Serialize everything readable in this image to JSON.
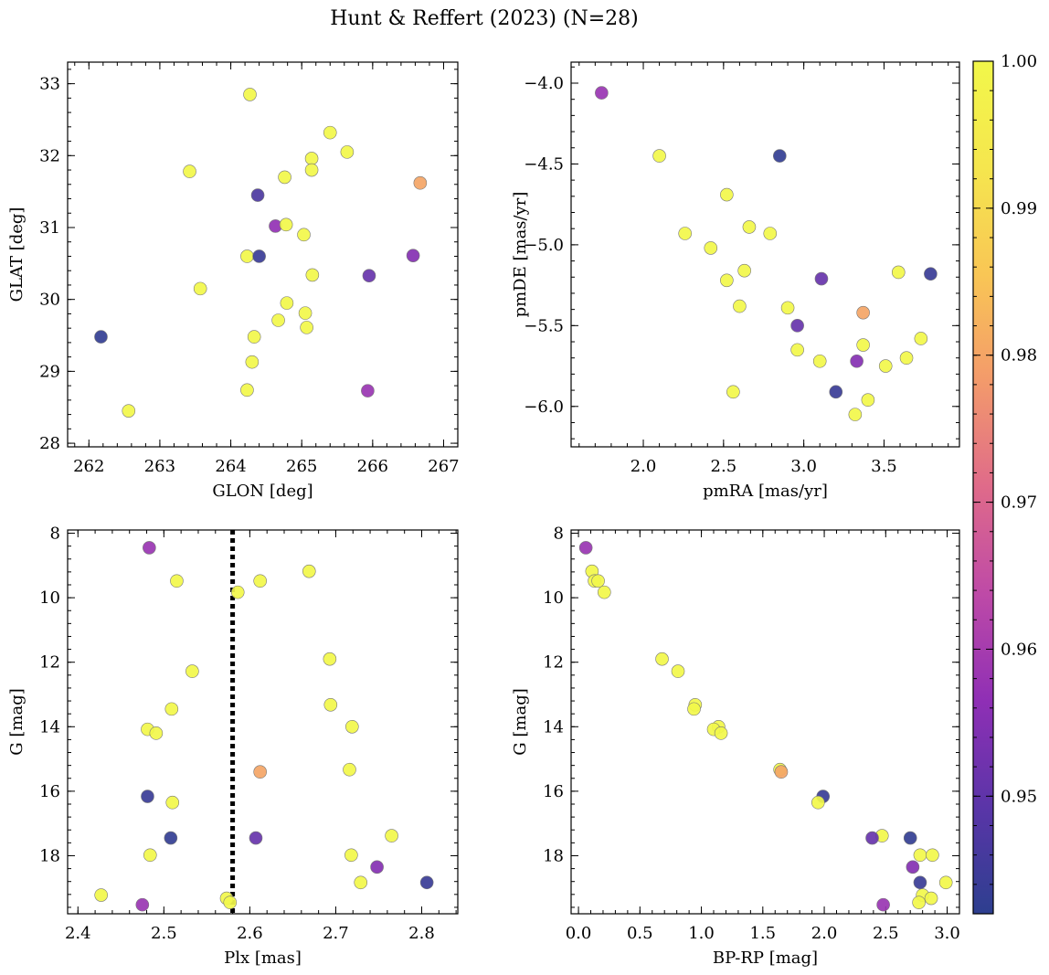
{
  "figure_title": "Hunt & Reffert (2023) (N=28)",
  "colorbar": {
    "range": [
      0.942,
      1.0
    ],
    "ticks": [
      "0.95",
      "0.96",
      "0.97",
      "0.98",
      "0.99",
      "1.00"
    ],
    "tick_values": [
      0.95,
      0.96,
      0.97,
      0.98,
      0.99,
      1.0
    ],
    "colormap": [
      "#2d3f8f",
      "#5a35a8",
      "#8f2fb5",
      "#be4aa7",
      "#df6a8a",
      "#f39a6b",
      "#f9c655",
      "#f5e64e",
      "#f2f74a"
    ]
  },
  "chart_data": [
    {
      "type": "scatter",
      "panel": "top-left",
      "xlabel": "GLON [deg]",
      "ylabel": "GLAT [deg]",
      "xlim": [
        261.7,
        267.2
      ],
      "ylim": [
        27.95,
        33.3
      ],
      "y_inverted": false,
      "xticks": [
        262,
        263,
        264,
        265,
        266,
        267
      ],
      "yticks": [
        28,
        29,
        30,
        31,
        32,
        33
      ],
      "points": [
        {
          "x": 264.27,
          "y": 32.85,
          "c": 1.0
        },
        {
          "x": 265.4,
          "y": 32.32,
          "c": 1.0
        },
        {
          "x": 265.64,
          "y": 32.05,
          "c": 1.0
        },
        {
          "x": 265.14,
          "y": 31.96,
          "c": 1.0
        },
        {
          "x": 263.42,
          "y": 31.78,
          "c": 1.0
        },
        {
          "x": 265.14,
          "y": 31.8,
          "c": 1.0
        },
        {
          "x": 264.76,
          "y": 31.7,
          "c": 1.0
        },
        {
          "x": 266.67,
          "y": 31.62,
          "c": 0.98
        },
        {
          "x": 264.38,
          "y": 31.45,
          "c": 0.947
        },
        {
          "x": 264.63,
          "y": 31.02,
          "c": 0.957
        },
        {
          "x": 264.78,
          "y": 31.04,
          "c": 1.0
        },
        {
          "x": 265.03,
          "y": 30.9,
          "c": 1.0
        },
        {
          "x": 264.23,
          "y": 30.6,
          "c": 1.0
        },
        {
          "x": 264.4,
          "y": 30.6,
          "c": 0.944
        },
        {
          "x": 266.57,
          "y": 30.61,
          "c": 0.955
        },
        {
          "x": 265.15,
          "y": 30.34,
          "c": 1.0
        },
        {
          "x": 265.95,
          "y": 30.33,
          "c": 0.951
        },
        {
          "x": 263.57,
          "y": 30.15,
          "c": 1.0
        },
        {
          "x": 264.79,
          "y": 29.95,
          "c": 1.0
        },
        {
          "x": 265.05,
          "y": 29.81,
          "c": 1.0
        },
        {
          "x": 264.67,
          "y": 29.71,
          "c": 1.0
        },
        {
          "x": 265.07,
          "y": 29.61,
          "c": 1.0
        },
        {
          "x": 262.17,
          "y": 29.48,
          "c": 0.943
        },
        {
          "x": 264.33,
          "y": 29.48,
          "c": 1.0
        },
        {
          "x": 264.3,
          "y": 29.13,
          "c": 1.0
        },
        {
          "x": 264.23,
          "y": 28.74,
          "c": 1.0
        },
        {
          "x": 265.93,
          "y": 28.73,
          "c": 0.958
        },
        {
          "x": 262.56,
          "y": 28.45,
          "c": 1.0
        }
      ]
    },
    {
      "type": "scatter",
      "panel": "top-right",
      "xlabel": "pmRA [mas/yr]",
      "ylabel": "pmDE [mas/yr]",
      "xlim": [
        1.55,
        3.97
      ],
      "ylim": [
        -6.25,
        -3.87
      ],
      "y_inverted": false,
      "xticks": [
        2.0,
        2.5,
        3.0,
        3.5
      ],
      "yticks": [
        -6.0,
        -5.5,
        -5.0,
        -4.5,
        -4.0
      ],
      "xtick_labels": [
        "2.0",
        "2.5",
        "3.0",
        "3.5"
      ],
      "ytick_labels": [
        "−6.0",
        "−5.5",
        "−5.0",
        "−4.5",
        "−4.0"
      ],
      "points": [
        {
          "x": 1.74,
          "y": -4.06,
          "c": 0.958
        },
        {
          "x": 2.1,
          "y": -4.45,
          "c": 1.0
        },
        {
          "x": 2.85,
          "y": -4.45,
          "c": 0.943
        },
        {
          "x": 2.52,
          "y": -4.69,
          "c": 1.0
        },
        {
          "x": 2.66,
          "y": -4.89,
          "c": 1.0
        },
        {
          "x": 2.26,
          "y": -4.93,
          "c": 1.0
        },
        {
          "x": 2.79,
          "y": -4.93,
          "c": 1.0
        },
        {
          "x": 2.42,
          "y": -5.02,
          "c": 1.0
        },
        {
          "x": 2.63,
          "y": -5.16,
          "c": 1.0
        },
        {
          "x": 3.59,
          "y": -5.17,
          "c": 1.0
        },
        {
          "x": 3.79,
          "y": -5.18,
          "c": 0.944
        },
        {
          "x": 3.11,
          "y": -5.21,
          "c": 0.951
        },
        {
          "x": 2.52,
          "y": -5.22,
          "c": 1.0
        },
        {
          "x": 2.6,
          "y": -5.38,
          "c": 1.0
        },
        {
          "x": 2.9,
          "y": -5.39,
          "c": 1.0
        },
        {
          "x": 3.37,
          "y": -5.42,
          "c": 0.98
        },
        {
          "x": 2.96,
          "y": -5.5,
          "c": 0.951
        },
        {
          "x": 3.73,
          "y": -5.58,
          "c": 1.0
        },
        {
          "x": 3.37,
          "y": -5.62,
          "c": 1.0
        },
        {
          "x": 2.96,
          "y": -5.65,
          "c": 1.0
        },
        {
          "x": 3.64,
          "y": -5.7,
          "c": 1.0
        },
        {
          "x": 3.1,
          "y": -5.72,
          "c": 1.0
        },
        {
          "x": 3.33,
          "y": -5.72,
          "c": 0.955
        },
        {
          "x": 3.51,
          "y": -5.75,
          "c": 1.0
        },
        {
          "x": 2.56,
          "y": -5.91,
          "c": 1.0
        },
        {
          "x": 3.2,
          "y": -5.91,
          "c": 0.944
        },
        {
          "x": 3.4,
          "y": -5.96,
          "c": 1.0
        },
        {
          "x": 3.32,
          "y": -6.05,
          "c": 1.0
        }
      ]
    },
    {
      "type": "scatter",
      "panel": "bottom-left",
      "xlabel": "Plx [mas]",
      "ylabel": "G [mag]",
      "xlim": [
        2.388,
        2.842
      ],
      "ylim": [
        19.8,
        7.9
      ],
      "y_inverted": true,
      "xticks": [
        2.4,
        2.5,
        2.6,
        2.7,
        2.8
      ],
      "yticks": [
        8,
        10,
        12,
        14,
        16,
        18
      ],
      "xtick_labels": [
        "2.4",
        "2.5",
        "2.6",
        "2.7",
        "2.8"
      ],
      "reference_line": {
        "x": 2.58,
        "style": "dotted"
      },
      "points": [
        {
          "x": 2.483,
          "y": 8.45,
          "c": 0.958
        },
        {
          "x": 2.669,
          "y": 9.18,
          "c": 1.0
        },
        {
          "x": 2.515,
          "y": 9.48,
          "c": 1.0
        },
        {
          "x": 2.612,
          "y": 9.48,
          "c": 1.0
        },
        {
          "x": 2.586,
          "y": 9.83,
          "c": 1.0
        },
        {
          "x": 2.693,
          "y": 11.9,
          "c": 1.0
        },
        {
          "x": 2.533,
          "y": 12.28,
          "c": 1.0
        },
        {
          "x": 2.694,
          "y": 13.32,
          "c": 1.0
        },
        {
          "x": 2.509,
          "y": 13.45,
          "c": 1.0
        },
        {
          "x": 2.719,
          "y": 14.0,
          "c": 1.0
        },
        {
          "x": 2.481,
          "y": 14.08,
          "c": 1.0
        },
        {
          "x": 2.491,
          "y": 14.2,
          "c": 1.0
        },
        {
          "x": 2.716,
          "y": 15.33,
          "c": 1.0
        },
        {
          "x": 2.612,
          "y": 15.4,
          "c": 0.98
        },
        {
          "x": 2.481,
          "y": 16.16,
          "c": 0.944
        },
        {
          "x": 2.51,
          "y": 16.35,
          "c": 1.0
        },
        {
          "x": 2.765,
          "y": 17.38,
          "c": 1.0
        },
        {
          "x": 2.508,
          "y": 17.45,
          "c": 0.943
        },
        {
          "x": 2.607,
          "y": 17.45,
          "c": 0.951
        },
        {
          "x": 2.484,
          "y": 17.98,
          "c": 1.0
        },
        {
          "x": 2.718,
          "y": 17.98,
          "c": 1.0
        },
        {
          "x": 2.748,
          "y": 18.35,
          "c": 0.955
        },
        {
          "x": 2.729,
          "y": 18.83,
          "c": 1.0
        },
        {
          "x": 2.806,
          "y": 18.83,
          "c": 0.944
        },
        {
          "x": 2.427,
          "y": 19.22,
          "c": 1.0
        },
        {
          "x": 2.573,
          "y": 19.32,
          "c": 1.0
        },
        {
          "x": 2.577,
          "y": 19.45,
          "c": 1.0
        },
        {
          "x": 2.475,
          "y": 19.52,
          "c": 0.958
        }
      ]
    },
    {
      "type": "scatter",
      "panel": "bottom-right",
      "xlabel": "BP-RP [mag]",
      "ylabel": "G [mag]",
      "xlim": [
        -0.06,
        3.1
      ],
      "ylim": [
        19.8,
        7.9
      ],
      "y_inverted": true,
      "xticks": [
        0.0,
        0.5,
        1.0,
        1.5,
        2.0,
        2.5,
        3.0
      ],
      "yticks": [
        8,
        10,
        12,
        14,
        16,
        18
      ],
      "xtick_labels": [
        "0.0",
        "0.5",
        "1.0",
        "1.5",
        "2.0",
        "2.5",
        "3.0"
      ],
      "points": [
        {
          "x": 0.06,
          "y": 8.45,
          "c": 0.958
        },
        {
          "x": 0.11,
          "y": 9.18,
          "c": 1.0
        },
        {
          "x": 0.13,
          "y": 9.48,
          "c": 1.0
        },
        {
          "x": 0.16,
          "y": 9.48,
          "c": 1.0
        },
        {
          "x": 0.21,
          "y": 9.83,
          "c": 1.0
        },
        {
          "x": 0.68,
          "y": 11.9,
          "c": 1.0
        },
        {
          "x": 0.81,
          "y": 12.28,
          "c": 1.0
        },
        {
          "x": 0.95,
          "y": 13.32,
          "c": 1.0
        },
        {
          "x": 0.94,
          "y": 13.45,
          "c": 1.0
        },
        {
          "x": 1.14,
          "y": 14.0,
          "c": 1.0
        },
        {
          "x": 1.1,
          "y": 14.08,
          "c": 1.0
        },
        {
          "x": 1.16,
          "y": 14.2,
          "c": 1.0
        },
        {
          "x": 1.64,
          "y": 15.33,
          "c": 1.0
        },
        {
          "x": 1.65,
          "y": 15.4,
          "c": 0.98
        },
        {
          "x": 1.99,
          "y": 16.16,
          "c": 0.944
        },
        {
          "x": 1.95,
          "y": 16.35,
          "c": 1.0
        },
        {
          "x": 2.47,
          "y": 17.38,
          "c": 1.0
        },
        {
          "x": 2.39,
          "y": 17.45,
          "c": 0.951
        },
        {
          "x": 2.7,
          "y": 17.45,
          "c": 0.943
        },
        {
          "x": 2.78,
          "y": 17.98,
          "c": 1.0
        },
        {
          "x": 2.88,
          "y": 17.98,
          "c": 1.0
        },
        {
          "x": 2.72,
          "y": 18.35,
          "c": 0.955
        },
        {
          "x": 2.78,
          "y": 18.83,
          "c": 0.944
        },
        {
          "x": 2.99,
          "y": 18.83,
          "c": 1.0
        },
        {
          "x": 2.8,
          "y": 19.22,
          "c": 1.0
        },
        {
          "x": 2.87,
          "y": 19.32,
          "c": 1.0
        },
        {
          "x": 2.77,
          "y": 19.45,
          "c": 1.0
        },
        {
          "x": 2.48,
          "y": 19.52,
          "c": 0.958
        }
      ]
    }
  ]
}
